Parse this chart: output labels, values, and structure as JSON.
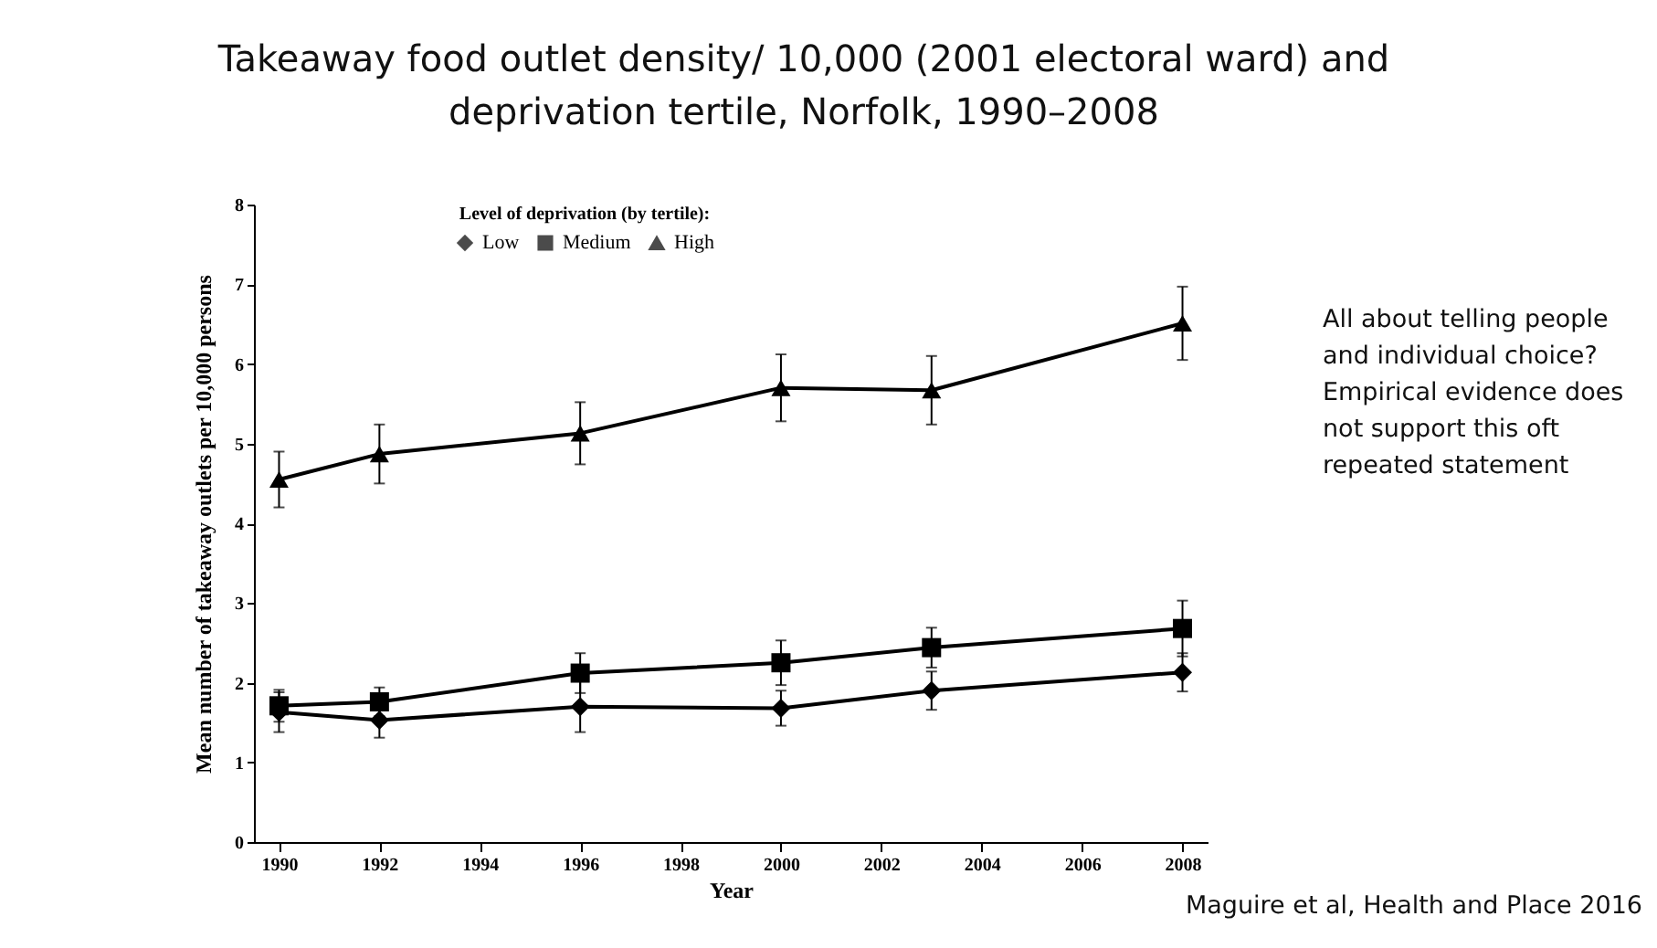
{
  "chart_data": {
    "type": "line",
    "title": "Takeaway food outlet density/ 10,000 (2001 electoral ward) and deprivation tertile, Norfolk, 1990–2008",
    "xlabel": "Year",
    "ylabel": "Mean number of takeaway outlets per 10,000 persons",
    "legend_title": "Level of deprivation (by tertile):",
    "x": [
      1990,
      1992,
      1996,
      2000,
      2003,
      2008
    ],
    "series": [
      {
        "name": "Low",
        "color": "#000000",
        "marker": "diamond",
        "values": [
          1.63,
          1.53,
          1.7,
          1.68,
          1.9,
          2.13
        ],
        "errors": [
          0.25,
          0.22,
          0.32,
          0.22,
          0.24,
          0.24
        ]
      },
      {
        "name": "Medium",
        "color": "#000000",
        "marker": "square",
        "values": [
          1.71,
          1.76,
          2.12,
          2.25,
          2.44,
          2.68
        ],
        "errors": [
          0.2,
          0.18,
          0.25,
          0.28,
          0.25,
          0.35
        ]
      },
      {
        "name": "High",
        "color": "#000000",
        "marker": "triangle",
        "values": [
          4.55,
          4.87,
          5.13,
          5.7,
          5.67,
          6.51
        ],
        "errors": [
          0.35,
          0.37,
          0.39,
          0.42,
          0.43,
          0.46
        ]
      }
    ],
    "xlim": [
      1989.5,
      2008.5
    ],
    "xticks": [
      1990,
      1992,
      1994,
      1996,
      1998,
      2000,
      2002,
      2004,
      2006,
      2008
    ],
    "ylim": [
      0,
      8
    ],
    "yticks": [
      0,
      1,
      2,
      3,
      4,
      5,
      6,
      7,
      8
    ],
    "grid": false,
    "legend": "top",
    "line_style": "solid",
    "annotations": [
      "All about telling people and individual choice? Empirical evidence does not support this oft repeated statement",
      "Maguire et al, Health and Place 2016"
    ]
  }
}
